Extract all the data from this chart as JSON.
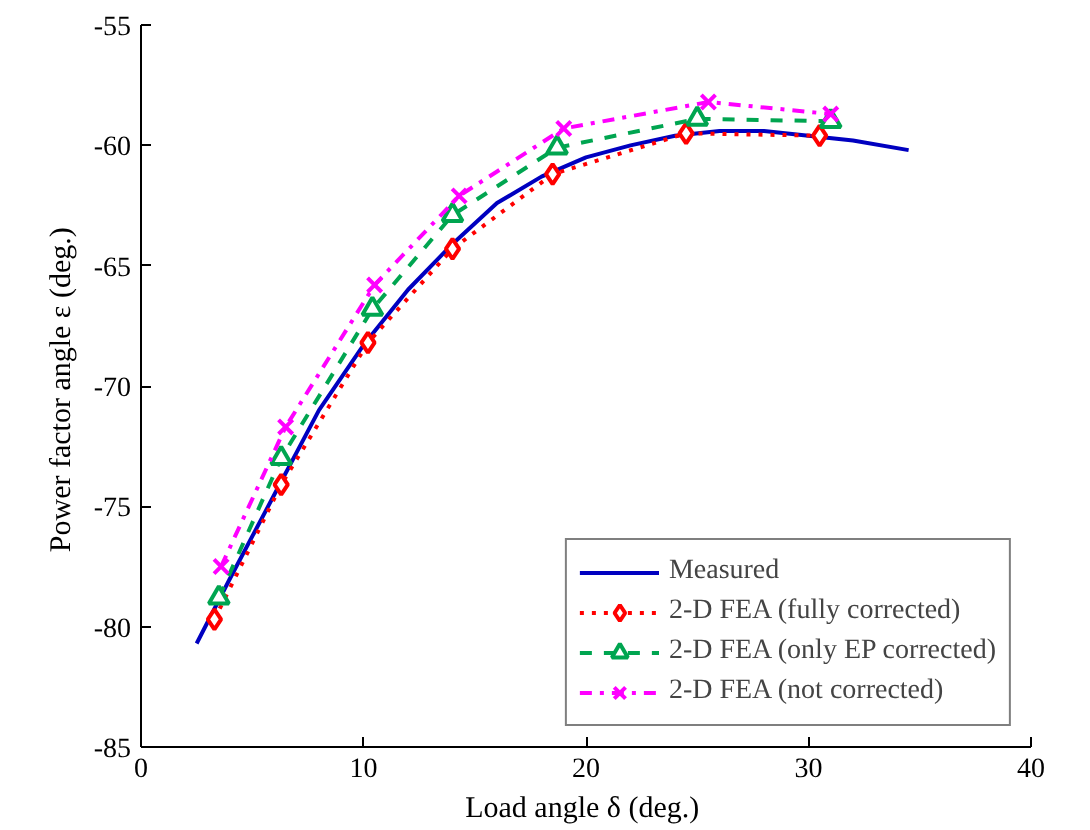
{
  "chart_data": {
    "type": "line",
    "xlabel": "Load angle  δ (deg.)",
    "ylabel": "Power factor angle  ε (deg.)",
    "xlim": [
      0,
      40
    ],
    "ylim": [
      -85,
      -55
    ],
    "xticks": [
      0,
      10,
      20,
      30,
      40
    ],
    "yticks": [
      -85,
      -80,
      -75,
      -70,
      -65,
      -60,
      -55
    ],
    "grid": false,
    "legend": "bottom right",
    "series": [
      {
        "name": "Measured",
        "color": "#0000c0",
        "marker": "none",
        "line_style": "solid",
        "x": [
          2.5,
          4,
          6,
          8,
          10,
          12,
          14,
          16,
          18,
          20,
          22,
          24,
          26,
          28,
          30,
          32,
          34.5
        ],
        "values": [
          -80.7,
          -78,
          -74.5,
          -71,
          -68.3,
          -66,
          -64.1,
          -62.4,
          -61.3,
          -60.5,
          -60,
          -59.6,
          -59.4,
          -59.4,
          -59.6,
          -59.8,
          -60.2
        ]
      },
      {
        "name": "2-D FEA (fully corrected)",
        "color": "#ff0000",
        "marker": "diamond",
        "line_style": "dotted",
        "x": [
          3.3,
          6.3,
          10.2,
          14,
          18.5,
          24.5,
          30.5
        ],
        "values": [
          -79.7,
          -74.1,
          -68.2,
          -64.3,
          -61.2,
          -59.5,
          -59.6
        ]
      },
      {
        "name": "2-D FEA (only EP corrected)",
        "color": "#00a550",
        "marker": "triangle",
        "line_style": "dashed",
        "x": [
          3.5,
          6.3,
          10.4,
          14,
          18.7,
          25,
          31
        ],
        "values": [
          -78.8,
          -73,
          -66.8,
          -62.9,
          -60.1,
          -58.9,
          -59
        ]
      },
      {
        "name": "2-D FEA (not corrected)",
        "color": "#ff00ff",
        "marker": "cross",
        "line_style": "dashdot",
        "x": [
          3.6,
          6.5,
          10.5,
          14.3,
          19,
          25.5,
          31
        ],
        "values": [
          -77.5,
          -71.7,
          -65.8,
          -62.1,
          -59.3,
          -58.2,
          -58.7
        ]
      }
    ]
  }
}
